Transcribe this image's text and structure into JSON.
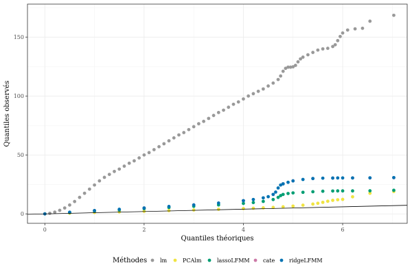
{
  "chart_data": {
    "type": "scatter",
    "xlabel": "Quantiles théoriques",
    "ylabel": "Quantiles observés",
    "xlim": [
      -0.35,
      7.3
    ],
    "ylim": [
      -8,
      178
    ],
    "xticks": [
      0,
      2,
      4,
      6
    ],
    "yticks": [
      0,
      50,
      100,
      150
    ],
    "grid": true,
    "legend_position": "bottom",
    "legend_title": "Méthodes",
    "reference_line": {
      "slope": 1,
      "intercept": 0,
      "color": "#000000"
    },
    "series": [
      {
        "name": "lm",
        "color": "#999999",
        "points": [
          [
            0,
            0
          ],
          [
            0.1,
            0.5
          ],
          [
            0.2,
            1.5
          ],
          [
            0.3,
            3
          ],
          [
            0.4,
            5
          ],
          [
            0.5,
            7.5
          ],
          [
            0.6,
            10.5
          ],
          [
            0.7,
            14
          ],
          [
            0.8,
            17.5
          ],
          [
            0.9,
            21
          ],
          [
            1.0,
            24.5
          ],
          [
            1.1,
            28
          ],
          [
            1.2,
            31
          ],
          [
            1.3,
            33.5
          ],
          [
            1.4,
            36
          ],
          [
            1.5,
            38
          ],
          [
            1.6,
            40.5
          ],
          [
            1.7,
            43
          ],
          [
            1.8,
            45
          ],
          [
            1.9,
            47.5
          ],
          [
            2.0,
            50
          ],
          [
            2.1,
            52
          ],
          [
            2.2,
            54.5
          ],
          [
            2.3,
            57
          ],
          [
            2.4,
            59.5
          ],
          [
            2.5,
            62
          ],
          [
            2.6,
            64.5
          ],
          [
            2.7,
            67
          ],
          [
            2.8,
            69
          ],
          [
            2.9,
            71.5
          ],
          [
            3.0,
            74
          ],
          [
            3.1,
            76.5
          ],
          [
            3.2,
            78.5
          ],
          [
            3.3,
            81
          ],
          [
            3.4,
            83.5
          ],
          [
            3.5,
            86
          ],
          [
            3.6,
            88
          ],
          [
            3.7,
            90.5
          ],
          [
            3.8,
            93
          ],
          [
            3.9,
            95
          ],
          [
            4.0,
            97.5
          ],
          [
            4.1,
            100
          ],
          [
            4.2,
            102
          ],
          [
            4.3,
            104
          ],
          [
            4.4,
            106
          ],
          [
            4.5,
            108.5
          ],
          [
            4.6,
            111
          ],
          [
            4.7,
            114
          ],
          [
            4.75,
            117
          ],
          [
            4.8,
            121
          ],
          [
            4.85,
            123.5
          ],
          [
            4.9,
            124.5
          ],
          [
            4.95,
            124.5
          ],
          [
            5.0,
            124.8
          ],
          [
            5.05,
            126
          ],
          [
            5.1,
            129
          ],
          [
            5.15,
            131.5
          ],
          [
            5.2,
            133
          ],
          [
            5.3,
            135
          ],
          [
            5.4,
            137
          ],
          [
            5.5,
            139
          ],
          [
            5.6,
            140
          ],
          [
            5.7,
            140.5
          ],
          [
            5.8,
            142
          ],
          [
            5.85,
            143.5
          ],
          [
            5.9,
            147
          ],
          [
            5.95,
            150.5
          ],
          [
            6.0,
            153.5
          ],
          [
            6.1,
            156
          ],
          [
            6.25,
            157
          ],
          [
            6.4,
            157.5
          ],
          [
            6.55,
            163.5
          ],
          [
            7.03,
            168.5
          ]
        ]
      },
      {
        "name": "PCAlm",
        "color": "#F0E442",
        "points": [
          [
            0,
            0
          ],
          [
            0.5,
            0.6
          ],
          [
            1.0,
            1.2
          ],
          [
            1.5,
            1.7
          ],
          [
            2.0,
            2.2
          ],
          [
            2.5,
            2.8
          ],
          [
            3.0,
            3.3
          ],
          [
            3.5,
            3.9
          ],
          [
            4.0,
            4.5
          ],
          [
            4.2,
            4.8
          ],
          [
            4.4,
            5.1
          ],
          [
            4.6,
            5.5
          ],
          [
            4.8,
            6.0
          ],
          [
            5.0,
            6.6
          ],
          [
            5.2,
            7.4
          ],
          [
            5.4,
            8.3
          ],
          [
            5.5,
            9.0
          ],
          [
            5.6,
            9.8
          ],
          [
            5.7,
            10.7
          ],
          [
            5.8,
            11.5
          ],
          [
            5.9,
            12.0
          ],
          [
            6.0,
            12.3
          ],
          [
            6.2,
            14.5
          ],
          [
            6.55,
            17.5
          ],
          [
            7.03,
            19.0
          ]
        ]
      },
      {
        "name": "lassoLFMM",
        "color": "#009E73",
        "points": [
          [
            0,
            0
          ],
          [
            0.5,
            1.2
          ],
          [
            1.0,
            2.4
          ],
          [
            1.5,
            3.4
          ],
          [
            2.0,
            4.4
          ],
          [
            2.5,
            5.4
          ],
          [
            3.0,
            6.4
          ],
          [
            3.5,
            7.6
          ],
          [
            4.0,
            8.9
          ],
          [
            4.2,
            9.6
          ],
          [
            4.4,
            10.6
          ],
          [
            4.6,
            12.2
          ],
          [
            4.7,
            14.0
          ],
          [
            4.75,
            15.5
          ],
          [
            4.8,
            16.5
          ],
          [
            4.9,
            17.3
          ],
          [
            5.0,
            17.8
          ],
          [
            5.2,
            18.3
          ],
          [
            5.4,
            18.8
          ],
          [
            5.6,
            19.2
          ],
          [
            5.8,
            19.4
          ],
          [
            5.9,
            19.5
          ],
          [
            6.0,
            19.5
          ],
          [
            6.2,
            19.5
          ],
          [
            6.55,
            19.6
          ],
          [
            7.03,
            20.0
          ]
        ]
      },
      {
        "name": "cate",
        "color": "#CC79A7",
        "points": [
          [
            0,
            0
          ],
          [
            1.0,
            2.8
          ],
          [
            2.0,
            5.0
          ],
          [
            3.0,
            7.6
          ],
          [
            4.0,
            11.2
          ],
          [
            4.6,
            16.5
          ],
          [
            4.8,
            25.5
          ],
          [
            5.0,
            28.0
          ],
          [
            5.4,
            30.0
          ],
          [
            5.8,
            30.4
          ],
          [
            6.2,
            30.5
          ],
          [
            6.55,
            30.5
          ],
          [
            7.03,
            30.7
          ]
        ]
      },
      {
        "name": "ridgeLFMM",
        "color": "#0072B2",
        "points": [
          [
            0,
            0
          ],
          [
            0.5,
            1.4
          ],
          [
            1.0,
            2.8
          ],
          [
            1.5,
            3.9
          ],
          [
            2.0,
            5.0
          ],
          [
            2.5,
            6.3
          ],
          [
            3.0,
            7.6
          ],
          [
            3.5,
            9.2
          ],
          [
            4.0,
            11.2
          ],
          [
            4.2,
            12.2
          ],
          [
            4.4,
            13.6
          ],
          [
            4.5,
            14.6
          ],
          [
            4.6,
            16.5
          ],
          [
            4.65,
            18.5
          ],
          [
            4.7,
            22.0
          ],
          [
            4.75,
            24.5
          ],
          [
            4.8,
            25.5
          ],
          [
            4.9,
            26.8
          ],
          [
            5.0,
            28.0
          ],
          [
            5.2,
            29.2
          ],
          [
            5.4,
            30.0
          ],
          [
            5.6,
            30.3
          ],
          [
            5.8,
            30.4
          ],
          [
            5.9,
            30.5
          ],
          [
            6.0,
            30.5
          ],
          [
            6.2,
            30.5
          ],
          [
            6.55,
            30.6
          ],
          [
            7.03,
            30.8
          ]
        ]
      }
    ]
  }
}
